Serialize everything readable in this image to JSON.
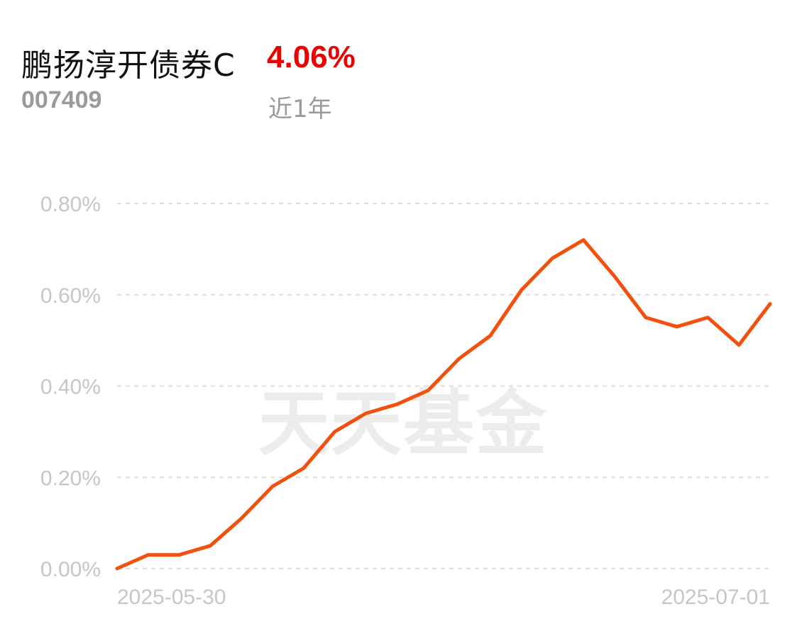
{
  "header": {
    "fund_name": "鹏扬淳开债券C",
    "return_value": "4.06%",
    "fund_code": "007409",
    "period": "近1年"
  },
  "colors": {
    "line": "#f2500f",
    "return_text": "#ee0000",
    "grid": "#dddddd"
  },
  "watermark": "天天基金",
  "chart_data": {
    "type": "line",
    "title": "",
    "xlabel": "",
    "ylabel": "",
    "ylim": [
      0,
      0.8
    ],
    "y_ticks": [
      "0.00%",
      "0.20%",
      "0.40%",
      "0.60%",
      "0.80%"
    ],
    "x_tick_labels": [
      "2025-05-30",
      "2025-07-01"
    ],
    "grid": true,
    "series": [
      {
        "values": [
          0.0,
          0.03,
          0.03,
          0.05,
          0.11,
          0.18,
          0.22,
          0.3,
          0.34,
          0.36,
          0.39,
          0.46,
          0.51,
          0.61,
          0.68,
          0.72,
          0.64,
          0.55,
          0.53,
          0.55,
          0.49,
          0.58
        ]
      }
    ]
  }
}
